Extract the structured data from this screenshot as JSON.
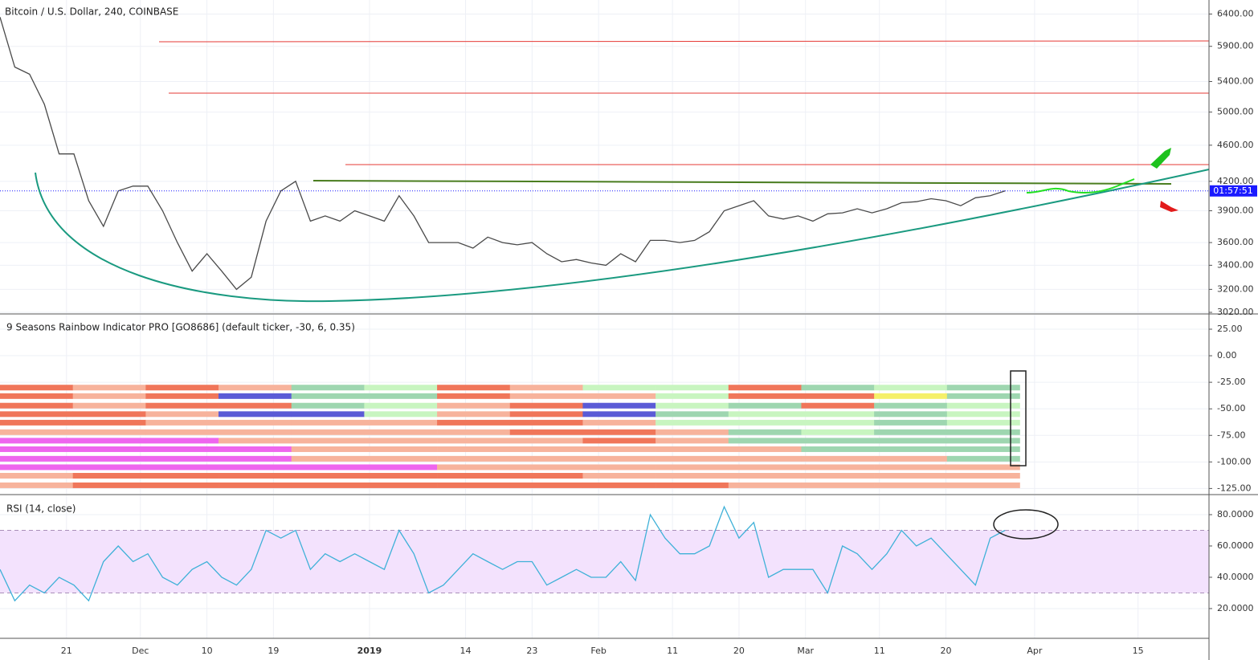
{
  "chart_data": [
    {
      "type": "line",
      "title": "Bitcoin / U.S. Dollar, 240, COINBASE",
      "log_scale": true,
      "grid": true,
      "color": "#4a4a4a",
      "countdown": "01:57:51",
      "last_line_color": "#1a1aff",
      "xlim": [
        0,
        163.6
      ],
      "xticks": [
        {
          "value": 9,
          "label": "21"
        },
        {
          "value": 19,
          "label": "Dec"
        },
        {
          "value": 28,
          "label": "10"
        },
        {
          "value": 37,
          "label": "19"
        },
        {
          "value": 50,
          "label": "2019"
        },
        {
          "value": 63,
          "label": "14"
        },
        {
          "value": 72,
          "label": "23"
        },
        {
          "value": 81,
          "label": "Feb"
        },
        {
          "value": 91,
          "label": "11"
        },
        {
          "value": 100,
          "label": "20"
        },
        {
          "value": 109,
          "label": "Mar"
        },
        {
          "value": 119,
          "label": "11"
        },
        {
          "value": 128,
          "label": "20"
        },
        {
          "value": 140,
          "label": "Apr"
        },
        {
          "value": 154,
          "label": "15"
        }
      ],
      "ylim": [
        3014,
        6630
      ],
      "yticks": [
        {
          "value": 6400,
          "label": "6400.00"
        },
        {
          "value": 5900,
          "label": "5900.00"
        },
        {
          "value": 5400,
          "label": "5400.00"
        },
        {
          "value": 5000,
          "label": "5000.00"
        },
        {
          "value": 4600,
          "label": "4600.00"
        },
        {
          "value": 4200,
          "label": "4200.00"
        },
        {
          "value": 3900,
          "label": "3900.00"
        },
        {
          "value": 3600,
          "label": "3600.00"
        },
        {
          "value": 3400,
          "label": "3400.00"
        },
        {
          "value": 3200,
          "label": "3200.00"
        },
        {
          "value": 3020,
          "label": "3020.00"
        }
      ],
      "x": [
        0,
        2,
        4,
        6,
        8,
        10,
        12,
        14,
        16,
        18,
        20,
        22,
        24,
        26,
        28,
        30,
        32,
        34,
        36,
        38,
        40,
        42,
        44,
        46,
        48,
        50,
        52,
        54,
        56,
        58,
        60,
        62,
        64,
        66,
        68,
        70,
        72,
        74,
        76,
        78,
        80,
        82,
        84,
        86,
        88,
        90,
        92,
        94,
        96,
        98,
        100,
        102,
        104,
        106,
        108,
        110,
        112,
        114,
        116,
        118,
        120,
        122,
        124,
        126,
        128,
        130,
        132,
        134,
        136
      ],
      "values": [
        6350,
        5600,
        5500,
        5100,
        4500,
        4500,
        4000,
        3750,
        4100,
        4150,
        4150,
        3900,
        3600,
        3350,
        3500,
        3350,
        3200,
        3300,
        3800,
        4100,
        4200,
        3800,
        3850,
        3800,
        3900,
        3850,
        3800,
        4050,
        3850,
        3600,
        3600,
        3600,
        3550,
        3650,
        3600,
        3580,
        3600,
        3500,
        3430,
        3450,
        3420,
        3400,
        3500,
        3430,
        3620,
        3620,
        3600,
        3620,
        3700,
        3900,
        3950,
        4000,
        3850,
        3820,
        3850,
        3800,
        3870,
        3880,
        3920,
        3880,
        3920,
        3980,
        3990,
        4020,
        4000,
        3950,
        4030,
        4050,
        4100
      ]
    },
    {
      "type": "rainbow",
      "title": "9 Seasons Rainbow Indicator PRO [GO8686] (default ticker, -30, 6, 0.35)",
      "grid": true,
      "ylim": [
        -130,
        38.6
      ],
      "yticks": [
        {
          "value": 25,
          "label": "25.00"
        },
        {
          "value": 0,
          "label": "0.00"
        },
        {
          "value": -25,
          "label": "-25.00"
        },
        {
          "value": -50,
          "label": "-50.00"
        },
        {
          "value": -75,
          "label": "-75.00"
        },
        {
          "value": -100,
          "label": "-100.00"
        },
        {
          "value": -125,
          "label": "-125.00"
        }
      ],
      "span": [
        0,
        138
      ],
      "rows": [
        {
          "value": -30,
          "colors": [
            "#f0765a",
            "#f7b39c",
            "#f0765a",
            "#f7b39c",
            "#9ed6b0",
            "#c8f5c0",
            "#f0765a",
            "#f7b39c",
            "#c8f5c0",
            "#c8f5c0",
            "#f0765a",
            "#9ed6b0",
            "#c8f5c0",
            "#9ed6b0"
          ]
        },
        {
          "value": -38,
          "colors": [
            "#f0765a",
            "#f7b39c",
            "#f0765a",
            "#5b5bd6",
            "#9ed6b0",
            "#9ed6b0",
            "#f0765a",
            "#f7b39c",
            "#f7b39c",
            "#c8f5c0",
            "#f0765a",
            "#f0765a",
            "#f5f06a",
            "#9ed6b0"
          ]
        },
        {
          "value": -47,
          "colors": [
            "#f0765a",
            "#f7b39c",
            "#f0765a",
            "#f0765a",
            "#9ed6b0",
            "#c8f5c0",
            "#f7b39c",
            "#f0765a",
            "#5b5bd6",
            "#c8f5c0",
            "#9ed6b0",
            "#f0765a",
            "#9ed6b0",
            "#c8f5c0"
          ]
        },
        {
          "value": -55,
          "colors": [
            "#f0765a",
            "#f0765a",
            "#f7b39c",
            "#5b5bd6",
            "#5b5bd6",
            "#c8f5c0",
            "#f7b39c",
            "#f0765a",
            "#5b5bd6",
            "#9ed6b0",
            "#c8f5c0",
            "#c8f5c0",
            "#9ed6b0",
            "#c8f5c0"
          ]
        },
        {
          "value": -63,
          "colors": [
            "#f0765a",
            "#f0765a",
            "#f7b39c",
            "#f7b39c",
            "#f7b39c",
            "#f7b39c",
            "#f0765a",
            "#f0765a",
            "#f7b39c",
            "#c8f5c0",
            "#c8f5c0",
            "#c8f5c0",
            "#9ed6b0",
            "#c8f5c0"
          ]
        },
        {
          "value": -72,
          "colors": [
            "#f7b39c",
            "#f7b39c",
            "#f7b39c",
            "#f7b39c",
            "#f7b39c",
            "#f7b39c",
            "#f7b39c",
            "#f0765a",
            "#f0765a",
            "#f7b39c",
            "#9ed6b0",
            "#c8f5c0",
            "#9ed6b0",
            "#9ed6b0"
          ]
        },
        {
          "value": -80,
          "colors": [
            "#ee66ee",
            "#ee66ee",
            "#ee66ee",
            "#f7b39c",
            "#f7b39c",
            "#f7b39c",
            "#f7b39c",
            "#f7b39c",
            "#f0765a",
            "#f7b39c",
            "#9ed6b0",
            "#9ed6b0",
            "#9ed6b0",
            "#9ed6b0"
          ]
        },
        {
          "value": -88,
          "colors": [
            "#ee66ee",
            "#ee66ee",
            "#ee66ee",
            "#ee66ee",
            "#f7b39c",
            "#f7b39c",
            "#f7b39c",
            "#f7b39c",
            "#f7b39c",
            "#f7b39c",
            "#f7b39c",
            "#9ed6b0",
            "#9ed6b0",
            "#9ed6b0"
          ]
        },
        {
          "value": -97,
          "colors": [
            "#ee66ee",
            "#ee66ee",
            "#ee66ee",
            "#ee66ee",
            "#f7b39c",
            "#f7b39c",
            "#f7b39c",
            "#f7b39c",
            "#f7b39c",
            "#f7b39c",
            "#f7b39c",
            "#f7b39c",
            "#f7b39c",
            "#9ed6b0"
          ]
        },
        {
          "value": -105,
          "colors": [
            "#ee66ee",
            "#ee66ee",
            "#ee66ee",
            "#ee66ee",
            "#ee66ee",
            "#ee66ee",
            "#f7b39c",
            "#f7b39c",
            "#f7b39c",
            "#f7b39c",
            "#f7b39c",
            "#f7b39c",
            "#f7b39c",
            "#f7b39c"
          ]
        },
        {
          "value": -113,
          "colors": [
            "#f7b39c",
            "#f0765a",
            "#f0765a",
            "#f0765a",
            "#f0765a",
            "#f0765a",
            "#f0765a",
            "#f0765a",
            "#f7b39c",
            "#f7b39c",
            "#f7b39c",
            "#f7b39c",
            "#f7b39c",
            "#f7b39c"
          ]
        },
        {
          "value": -122,
          "colors": [
            "#f7b39c",
            "#f0765a",
            "#f0765a",
            "#f0765a",
            "#f0765a",
            "#f0765a",
            "#f0765a",
            "#f0765a",
            "#f0765a",
            "#f0765a",
            "#f7b39c",
            "#f7b39c",
            "#f7b39c",
            "#f7b39c"
          ]
        }
      ]
    },
    {
      "type": "line",
      "title": "RSI (14, close)",
      "grid": true,
      "color": "#3fb1d8",
      "ylim": [
        1,
        92.3
      ],
      "yticks": [
        {
          "value": 80,
          "label": "80.0000"
        },
        {
          "value": 60,
          "label": "60.0000"
        },
        {
          "value": 40,
          "label": "40.0000"
        },
        {
          "value": 20,
          "label": "20.0000"
        }
      ],
      "band": [
        30,
        70
      ],
      "band_color": "#f3e2fd",
      "x": [
        0,
        2,
        4,
        6,
        8,
        10,
        12,
        14,
        16,
        18,
        20,
        22,
        24,
        26,
        28,
        30,
        32,
        34,
        36,
        38,
        40,
        42,
        44,
        46,
        48,
        50,
        52,
        54,
        56,
        58,
        60,
        62,
        64,
        66,
        68,
        70,
        72,
        74,
        76,
        78,
        80,
        82,
        84,
        86,
        88,
        90,
        92,
        94,
        96,
        98,
        100,
        102,
        104,
        106,
        108,
        110,
        112,
        114,
        116,
        118,
        120,
        122,
        124,
        126,
        128,
        130,
        132,
        134,
        136
      ],
      "values": [
        45,
        25,
        35,
        30,
        40,
        35,
        25,
        50,
        60,
        50,
        55,
        40,
        35,
        45,
        50,
        40,
        35,
        45,
        70,
        65,
        70,
        45,
        55,
        50,
        55,
        50,
        45,
        70,
        55,
        30,
        35,
        45,
        55,
        50,
        45,
        50,
        50,
        35,
        40,
        45,
        40,
        40,
        50,
        38,
        80,
        65,
        55,
        55,
        60,
        85,
        65,
        75,
        40,
        45,
        45,
        45,
        30,
        60,
        55,
        45,
        55,
        70,
        60,
        65,
        55,
        45,
        35,
        65,
        70
      ]
    }
  ]
}
